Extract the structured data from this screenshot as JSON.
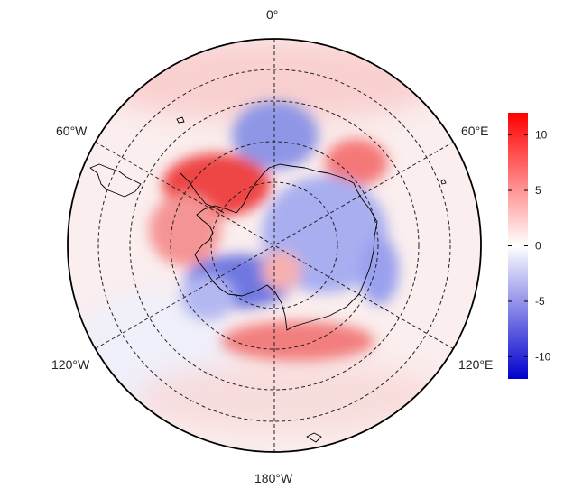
{
  "map": {
    "projection": "south-polar-stereographic",
    "longitude_labels": {
      "top": "0°",
      "upper_left": "60°W",
      "upper_right": "60°E",
      "lower_left": "120°W",
      "lower_right": "120°E",
      "bottom": "180°W"
    },
    "graticule_style": "dashed",
    "coastline_color": "#000000"
  },
  "colorbar": {
    "ticks": [
      "10",
      "5",
      "0",
      "-5",
      "-10"
    ],
    "tick_values": [
      10,
      5,
      0,
      -5,
      -10
    ],
    "range": [
      -12,
      12
    ],
    "colors": {
      "max": "#ff0000",
      "mid": "#ffffff",
      "min": "#0000cc"
    }
  }
}
